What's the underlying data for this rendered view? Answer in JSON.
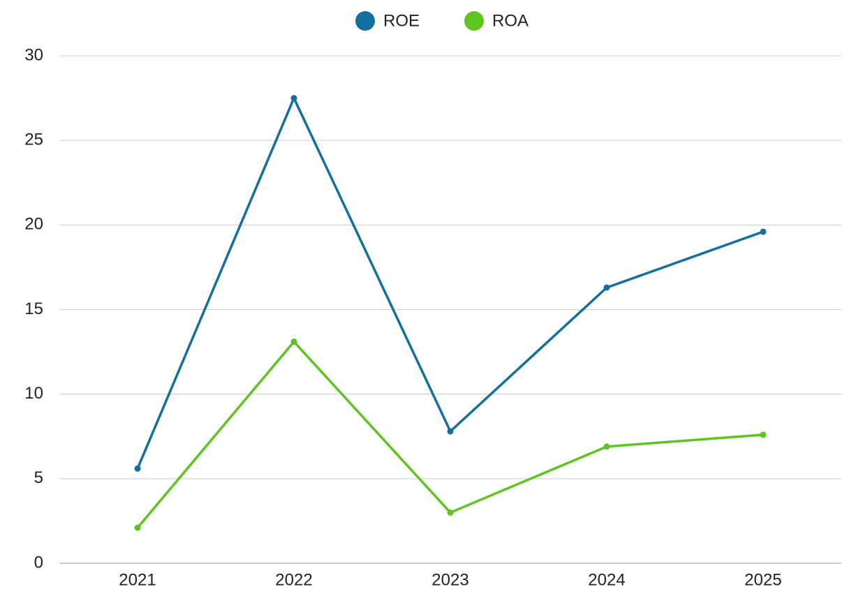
{
  "chart_data": {
    "type": "line",
    "categories": [
      "2021",
      "2022",
      "2023",
      "2024",
      "2025"
    ],
    "series": [
      {
        "name": "ROE",
        "color": "#136f9f",
        "values": [
          5.6,
          27.5,
          7.8,
          16.3,
          19.6
        ]
      },
      {
        "name": "ROA",
        "color": "#5ec41f",
        "values": [
          2.1,
          13.1,
          3.0,
          6.9,
          7.6
        ]
      }
    ],
    "ylim": [
      0,
      30
    ],
    "yticks": [
      0,
      5,
      10,
      15,
      20,
      25,
      30
    ],
    "grid": true,
    "legend": "top"
  }
}
